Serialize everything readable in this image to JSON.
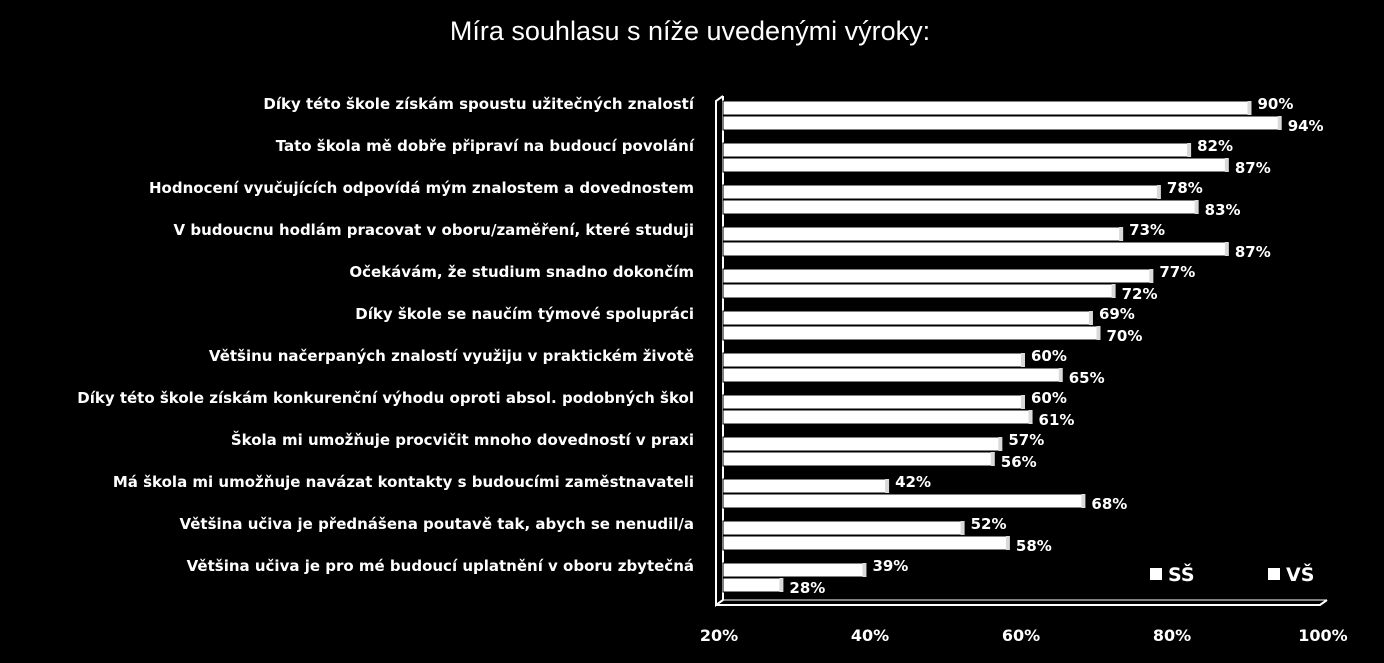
{
  "chart_data": {
    "type": "bar",
    "orientation": "horizontal",
    "title": "Míra souhlasu s níže uvedenými výroky:",
    "categories": [
      "Díky této škole získám spoustu užitečných znalostí",
      "Tato škola mě dobře připraví na budoucí povolání",
      "Hodnocení vyučujících odpovídá mým znalostem a dovednostem",
      "V budoucnu hodlám pracovat v oboru/zaměření, které studuji",
      "Očekávám, že studium snadno dokončím",
      "Díky škole se naučím týmové spolupráci",
      "Většinu načerpaných znalostí využiju v praktickém životě",
      "Díky této škole získám konkurenční výhodu oproti absol. podobných škol",
      "Škola mi umožňuje procvičit mnoho dovedností v praxi",
      "Má škola mi umožňuje navázat kontakty s budoucími zaměstnavateli",
      "Většina učiva je přednášena poutavě tak, abych se nenudil/a",
      "Většina učiva je pro mé budoucí uplatnění v oboru zbytečná"
    ],
    "series": [
      {
        "name": "SŠ",
        "values": [
          90,
          82,
          78,
          73,
          77,
          69,
          60,
          60,
          57,
          42,
          52,
          39
        ],
        "labels": [
          "90%",
          "82%",
          "78%",
          "73%",
          "77%",
          "69%",
          "60%",
          "60%",
          "57%",
          "42%",
          "52%",
          "39%"
        ]
      },
      {
        "name": "VŠ",
        "values": [
          94,
          87,
          83,
          87,
          72,
          70,
          65,
          61,
          56,
          68,
          58,
          28
        ],
        "labels": [
          "94%",
          "87%",
          "83%",
          "87%",
          "72%",
          "70%",
          "65%",
          "61%",
          "56%",
          "68%",
          "58%",
          "28%"
        ]
      }
    ],
    "xlim": [
      20,
      100
    ],
    "xticks": [
      "20%",
      "40%",
      "60%",
      "80%",
      "100%"
    ],
    "xtick_values": [
      20,
      40,
      60,
      80,
      100
    ],
    "legend_position": "bottom-right",
    "grid": false,
    "colors": {
      "background": "#000000",
      "bar_fill": "#ffffff",
      "bar_stroke": "#000000",
      "text": "#ffffff"
    }
  }
}
